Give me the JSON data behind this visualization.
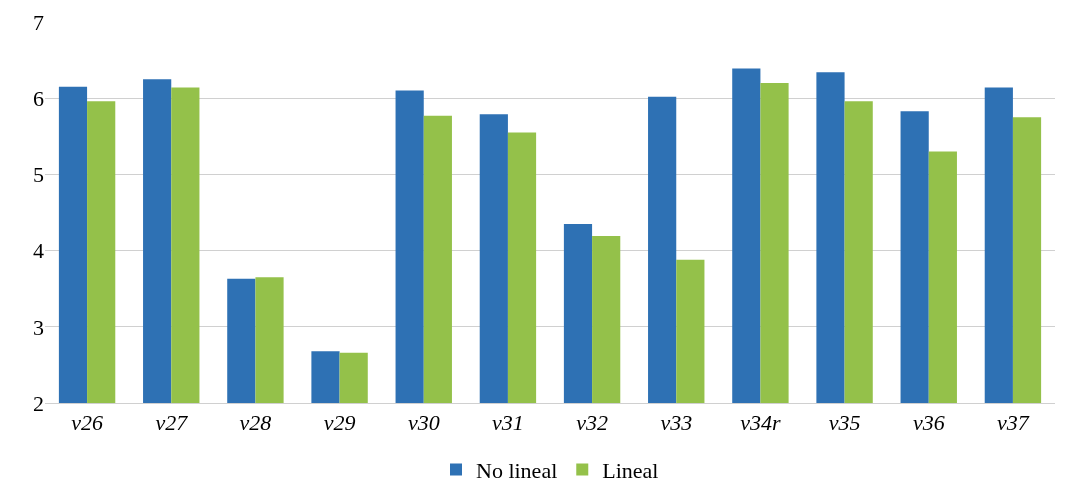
{
  "chart_data": {
    "type": "bar",
    "categories": [
      "v26",
      "v27",
      "v28",
      "v29",
      "v30",
      "v31",
      "v32",
      "v33",
      "v34r",
      "v35",
      "v36",
      "v37"
    ],
    "series": [
      {
        "name": "No lineal",
        "color": "#2e71b4",
        "values": [
          6.15,
          6.25,
          3.63,
          2.68,
          6.1,
          5.79,
          4.35,
          6.02,
          6.39,
          6.34,
          5.83,
          6.14
        ]
      },
      {
        "name": "Lineal",
        "color": "#94c14a",
        "values": [
          5.96,
          6.14,
          3.65,
          2.66,
          5.77,
          5.55,
          4.19,
          3.88,
          6.2,
          5.96,
          5.3,
          5.75
        ]
      }
    ],
    "ylim": [
      2,
      7
    ],
    "yticks": [
      2,
      3,
      4,
      5,
      6,
      7
    ],
    "grid": "y",
    "legend": "bottom"
  }
}
